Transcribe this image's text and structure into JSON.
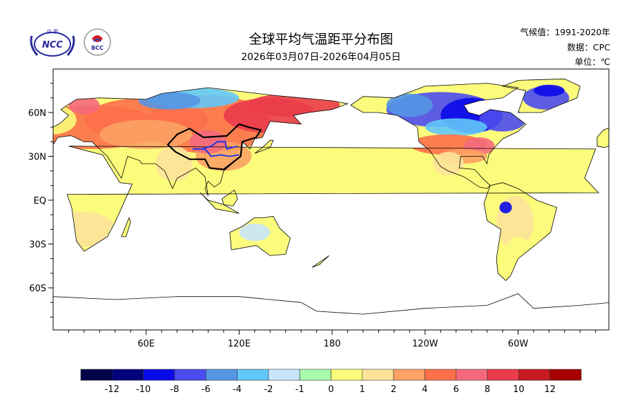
{
  "header": {
    "title": "全球平均气温距平分布图",
    "date_range": "2026年03月07日-2026年04月05日",
    "climatology": "气候值：1991-2020年",
    "data_source": "数据：CPC",
    "unit": "单位：℃",
    "logos": [
      "NCC",
      "BCC"
    ]
  },
  "map": {
    "lat_labels": [
      "60N",
      "30N",
      "EQ",
      "30S",
      "60S"
    ],
    "lon_labels": [
      "60E",
      "120E",
      "180",
      "120W",
      "60W"
    ]
  },
  "legend": {
    "labels": [
      "-12",
      "-10",
      "-8",
      "-6",
      "-4",
      "-2",
      "-1",
      "0",
      "1",
      "2",
      "4",
      "6",
      "8",
      "10",
      "12"
    ],
    "colors": [
      "#03034a",
      "#02027c",
      "#0a0ae8",
      "#4b4bef",
      "#5596e3",
      "#62c8fa",
      "#c8e4fc",
      "#a8fcaa",
      "#fcfc7c",
      "#fde29a",
      "#fca264",
      "#fc704a",
      "#f46a7c",
      "#ea3c4a",
      "#c81a22",
      "#a80000"
    ]
  }
}
